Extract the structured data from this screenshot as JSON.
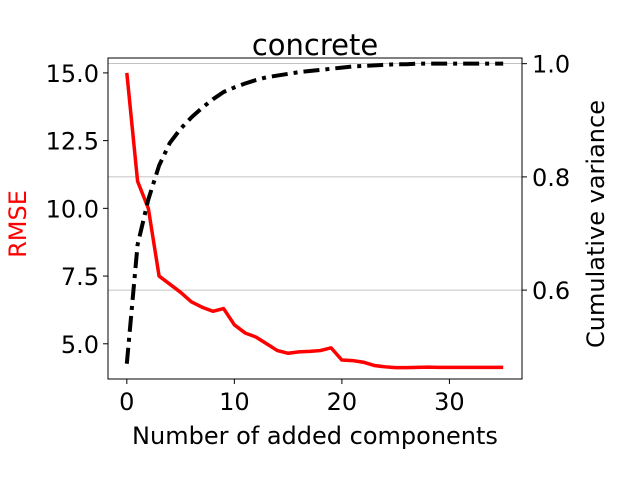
{
  "chart_data": {
    "type": "line",
    "title": "concrete",
    "xlabel": "Number of added components",
    "ylabel_left": "RMSE",
    "ylabel_right": "Cumulative variance",
    "xlim": [
      -1.75,
      36.75
    ],
    "ylim_left": [
      3.7,
      15.55
    ],
    "ylim_right": [
      0.443,
      1.01
    ],
    "x_ticks": [
      0,
      10,
      20,
      30
    ],
    "y_left_ticks": [
      "5.0",
      "7.5",
      "10.0",
      "12.5",
      "15.0"
    ],
    "y_right_ticks": [
      "0.6",
      "0.8",
      "1.0"
    ],
    "grid": "horizontal lines at right-axis ticks",
    "colors": {
      "rmse": "#ff0000",
      "cumvar": "#000000",
      "grid": "#b0b0b0"
    },
    "series": [
      {
        "axis": "left",
        "style": "solid",
        "x": [
          0,
          1,
          2,
          3,
          4,
          5,
          6,
          7,
          8,
          9,
          10,
          11,
          12,
          13,
          14,
          15,
          16,
          17,
          18,
          19,
          20,
          21,
          22,
          23,
          24,
          25,
          26,
          27,
          28,
          29,
          30,
          31,
          32,
          33,
          34,
          35
        ],
        "values": [
          15.0,
          11.0,
          10.0,
          7.5,
          7.2,
          6.9,
          6.55,
          6.35,
          6.2,
          6.3,
          5.7,
          5.4,
          5.25,
          5.0,
          4.75,
          4.65,
          4.7,
          4.72,
          4.75,
          4.85,
          4.4,
          4.38,
          4.32,
          4.2,
          4.15,
          4.12,
          4.12,
          4.13,
          4.14,
          4.13,
          4.13,
          4.13,
          4.13,
          4.13,
          4.13,
          4.13
        ]
      },
      {
        "axis": "right",
        "style": "dashdot",
        "x": [
          0,
          1,
          2,
          3,
          4,
          5,
          6,
          7,
          8,
          9,
          10,
          11,
          12,
          13,
          14,
          15,
          16,
          17,
          18,
          19,
          20,
          21,
          22,
          23,
          24,
          25,
          26,
          27,
          28,
          29,
          30,
          31,
          32,
          33,
          34,
          35
        ],
        "values": [
          0.47,
          0.68,
          0.76,
          0.82,
          0.86,
          0.885,
          0.905,
          0.922,
          0.937,
          0.95,
          0.958,
          0.965,
          0.971,
          0.976,
          0.979,
          0.982,
          0.985,
          0.987,
          0.989,
          0.991,
          0.993,
          0.995,
          0.996,
          0.997,
          0.998,
          0.999,
          0.999,
          1.0,
          1.0,
          1.0,
          1.0,
          1.0,
          1.0,
          1.0,
          1.0,
          1.0
        ]
      }
    ]
  }
}
